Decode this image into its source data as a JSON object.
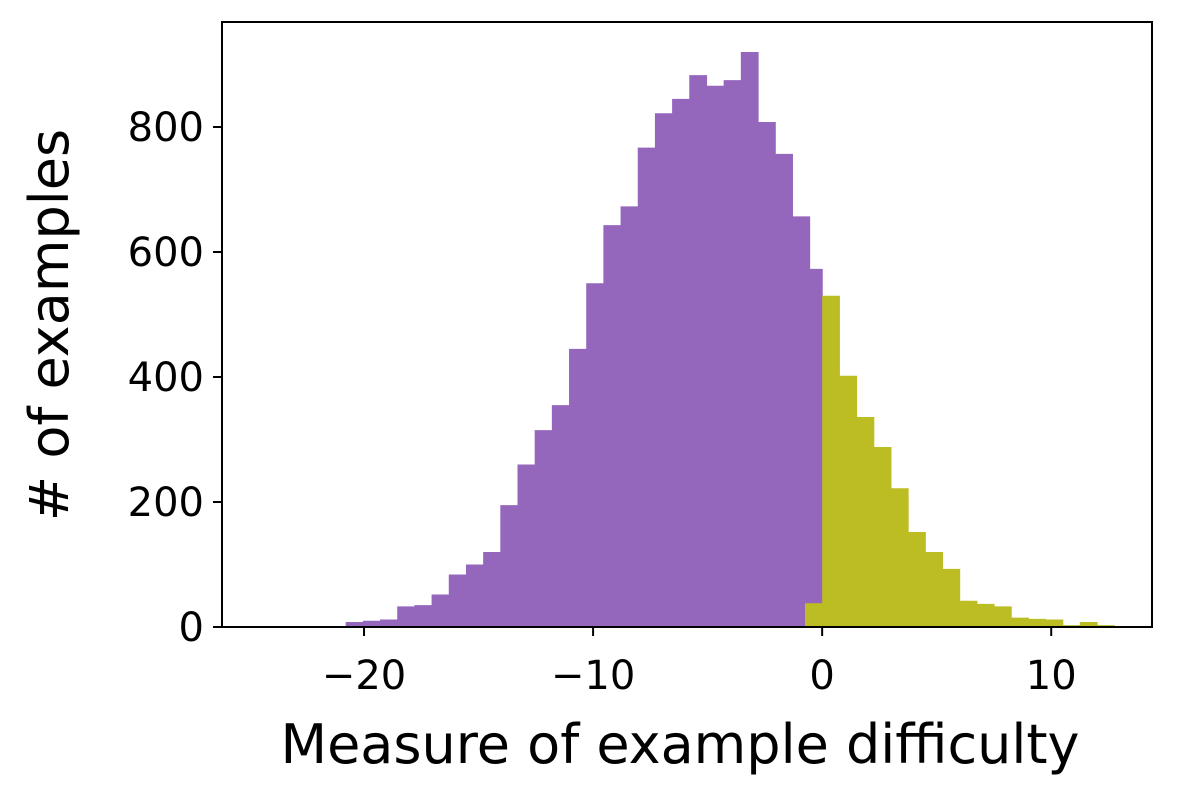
{
  "chart_data": {
    "type": "bar",
    "title": "",
    "xlabel": "Measure of example difficulty",
    "ylabel": "# of examples",
    "xlim": [
      -26.2,
      14.4
    ],
    "ylim": [
      0,
      968
    ],
    "xticks": [
      -20,
      -10,
      0,
      10
    ],
    "xtick_labels": [
      "−20",
      "−10",
      "0",
      "10"
    ],
    "yticks": [
      0,
      200,
      400,
      600,
      800
    ],
    "ytick_labels": [
      "0",
      "200",
      "400",
      "600",
      "800"
    ],
    "grid": false,
    "legend": "none",
    "series": [
      {
        "color": "#9467bd",
        "bins": [
          [
            -20.8,
            -20.05,
            8
          ],
          [
            -20.05,
            -19.3,
            10
          ],
          [
            -19.3,
            -18.55,
            12
          ],
          [
            -18.55,
            -17.8,
            33
          ],
          [
            -17.8,
            -17.05,
            35
          ],
          [
            -17.05,
            -16.3,
            52
          ],
          [
            -16.3,
            -15.55,
            84
          ],
          [
            -15.55,
            -14.8,
            100
          ],
          [
            -14.8,
            -14.05,
            120
          ],
          [
            -14.05,
            -13.3,
            195
          ],
          [
            -13.3,
            -12.55,
            260
          ],
          [
            -12.55,
            -11.8,
            315
          ],
          [
            -11.8,
            -11.05,
            355
          ],
          [
            -11.05,
            -10.3,
            445
          ],
          [
            -10.3,
            -9.55,
            550
          ],
          [
            -9.55,
            -8.8,
            643
          ],
          [
            -8.8,
            -8.05,
            673
          ],
          [
            -8.05,
            -7.3,
            767
          ],
          [
            -7.3,
            -6.55,
            822
          ],
          [
            -6.55,
            -5.8,
            845
          ],
          [
            -5.8,
            -5.05,
            883
          ],
          [
            -5.05,
            -4.3,
            866
          ],
          [
            -4.3,
            -3.55,
            875
          ],
          [
            -3.55,
            -2.8,
            920
          ],
          [
            -2.8,
            -2.05,
            808
          ],
          [
            -2.05,
            -1.3,
            757
          ],
          [
            -1.3,
            -0.55,
            657
          ],
          [
            -0.55,
            0.0,
            573
          ]
        ]
      },
      {
        "color": "#bcbd22",
        "bins": [
          [
            -0.75,
            0.0,
            38
          ],
          [
            0.0,
            0.75,
            530
          ],
          [
            0.75,
            1.5,
            402
          ],
          [
            1.5,
            2.25,
            336
          ],
          [
            2.25,
            3.0,
            288
          ],
          [
            3.0,
            3.75,
            222
          ],
          [
            3.75,
            4.5,
            152
          ],
          [
            4.5,
            5.25,
            120
          ],
          [
            5.25,
            6.0,
            93
          ],
          [
            6.0,
            6.75,
            42
          ],
          [
            6.75,
            7.5,
            37
          ],
          [
            7.5,
            8.25,
            33
          ],
          [
            8.25,
            9.0,
            15
          ],
          [
            9.0,
            9.75,
            13
          ],
          [
            9.75,
            10.5,
            12
          ],
          [
            10.5,
            11.25,
            3
          ],
          [
            11.25,
            12.0,
            8
          ],
          [
            12.0,
            12.75,
            3
          ]
        ]
      }
    ]
  }
}
